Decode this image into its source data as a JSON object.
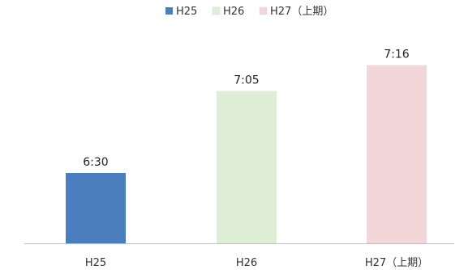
{
  "chart_data": {
    "type": "bar",
    "categories": [
      "H25",
      "H26",
      "H27（上期）"
    ],
    "values": [
      6.5,
      7.0833,
      7.2667
    ],
    "data_labels": [
      "6:30",
      "7:05",
      "7:16"
    ],
    "series": [
      {
        "name": "H25",
        "color": "#4a7ebf"
      },
      {
        "name": "H26",
        "color": "#dfeed6"
      },
      {
        "name": "H27（上期）",
        "color": "#f2d6da"
      }
    ],
    "title": "",
    "xlabel": "",
    "ylabel": "",
    "ylim": [
      6.0,
      7.5
    ],
    "value_unit": "hours (h:mm)",
    "grid": false,
    "legend_position": "top-center"
  }
}
